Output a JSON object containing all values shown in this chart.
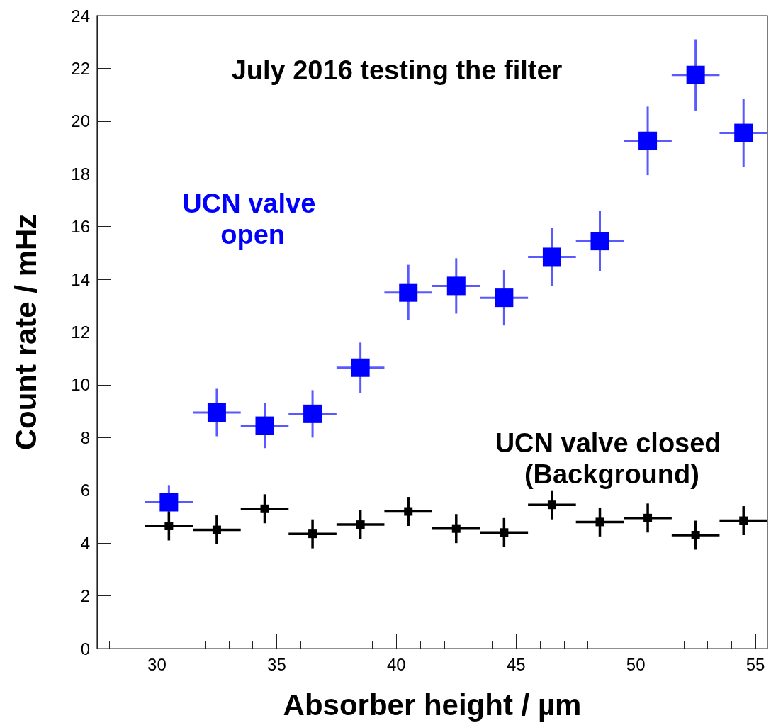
{
  "chart_data": {
    "type": "scatter",
    "title": "July 2016 testing the filter",
    "xlabel": "Absorber height / µm",
    "ylabel": "Count rate / mHz",
    "xlim": [
      27.5,
      55.5
    ],
    "xticks": [
      30,
      35,
      40,
      45,
      50,
      55
    ],
    "ylim": [
      0,
      24
    ],
    "yticks": [
      0,
      2,
      4,
      6,
      8,
      10,
      12,
      14,
      16,
      18,
      20,
      22,
      24
    ],
    "marker": "square",
    "x": [
      30.5,
      32.5,
      34.5,
      36.5,
      38.5,
      40.5,
      42.5,
      44.5,
      46.5,
      48.5,
      50.5,
      52.5,
      54.5
    ],
    "series": [
      {
        "name": "UCN valve open",
        "color": "#0000ff",
        "values": [
          5.55,
          8.95,
          8.45,
          8.9,
          10.65,
          13.5,
          13.75,
          13.3,
          14.85,
          15.45,
          19.25,
          21.75,
          19.55
        ],
        "errors": [
          0.65,
          0.9,
          0.85,
          0.9,
          0.95,
          1.05,
          1.05,
          1.05,
          1.1,
          1.15,
          1.3,
          1.35,
          1.3
        ],
        "xerrors": [
          1,
          1,
          1,
          1,
          1,
          1,
          1,
          1,
          1,
          1,
          1,
          1,
          1
        ]
      },
      {
        "name": "UCN valve closed (Background)",
        "color": "#000000",
        "values": [
          4.65,
          4.5,
          5.3,
          4.35,
          4.7,
          5.2,
          4.55,
          4.4,
          5.45,
          4.8,
          4.95,
          4.3,
          4.85
        ],
        "errors": [
          0.55,
          0.55,
          0.55,
          0.55,
          0.55,
          0.55,
          0.55,
          0.55,
          0.55,
          0.55,
          0.55,
          0.55,
          0.55
        ],
        "xerrors": [
          1,
          1,
          1,
          1,
          1,
          1,
          1,
          1,
          1,
          1,
          1,
          1,
          1
        ]
      }
    ]
  }
}
